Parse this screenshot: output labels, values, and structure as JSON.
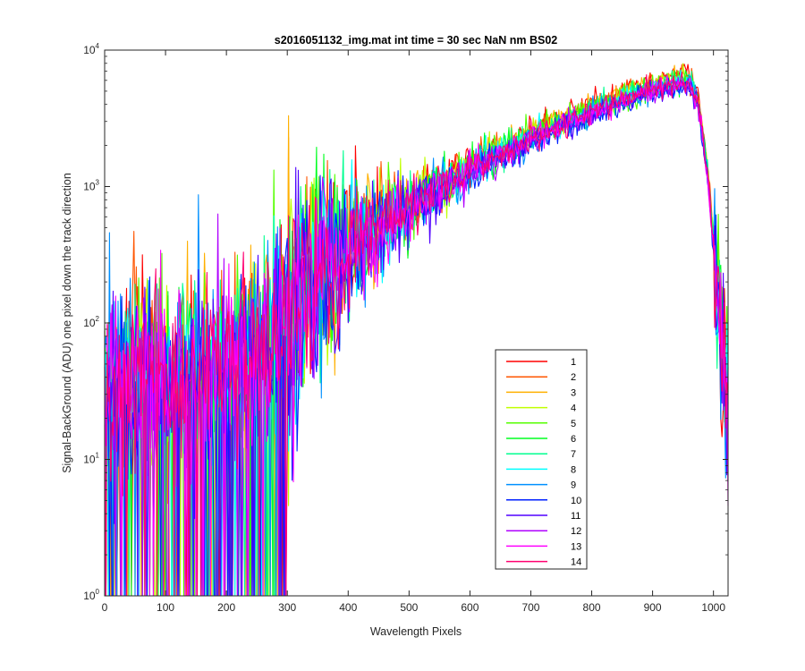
{
  "chart_data": {
    "type": "line",
    "title": "s2016051132_img.mat int time = 30 sec  NaN nm BS02",
    "xlabel": "Wavelength Pixels",
    "ylabel": "Signal-BackGround (ADU) one pixel down the track direction",
    "xlim": [
      0,
      1024
    ],
    "ylim": [
      1,
      10000
    ],
    "yscale": "log",
    "grid": false,
    "legend_position": "lower-right",
    "x_ticks": [
      "0",
      "100",
      "200",
      "300",
      "400",
      "500",
      "600",
      "700",
      "800",
      "900",
      "1000"
    ],
    "y_ticks": [
      {
        "base": "10",
        "exp": "0"
      },
      {
        "base": "10",
        "exp": "1"
      },
      {
        "base": "10",
        "exp": "2"
      },
      {
        "base": "10",
        "exp": "3"
      },
      {
        "base": "10",
        "exp": "4"
      }
    ],
    "envelope": {
      "x": [
        0,
        50,
        100,
        150,
        200,
        250,
        280,
        300,
        350,
        400,
        450,
        500,
        550,
        600,
        650,
        700,
        750,
        800,
        850,
        900,
        930,
        955,
        965,
        975,
        990,
        1005,
        1015,
        1024
      ],
      "y": [
        40,
        40,
        40,
        40,
        45,
        60,
        80,
        110,
        200,
        330,
        480,
        700,
        960,
        1320,
        1750,
        2250,
        2800,
        3500,
        4300,
        5100,
        5600,
        5900,
        5500,
        4000,
        1300,
        200,
        70,
        20
      ]
    },
    "series": [
      {
        "name": "1",
        "color": "#ff0000",
        "scale": 1.14
      },
      {
        "name": "2",
        "color": "#ff5500",
        "scale": 1.12
      },
      {
        "name": "3",
        "color": "#ffb000",
        "scale": 1.1
      },
      {
        "name": "4",
        "color": "#c0ff00",
        "scale": 1.08
      },
      {
        "name": "5",
        "color": "#55ff00",
        "scale": 1.06
      },
      {
        "name": "6",
        "color": "#00ff20",
        "scale": 1.04
      },
      {
        "name": "7",
        "color": "#00ff90",
        "scale": 1.02
      },
      {
        "name": "8",
        "color": "#00ffff",
        "scale": 1.0
      },
      {
        "name": "9",
        "color": "#0090ff",
        "scale": 0.98
      },
      {
        "name": "10",
        "color": "#0020ff",
        "scale": 0.95
      },
      {
        "name": "11",
        "color": "#5000ff",
        "scale": 0.96
      },
      {
        "name": "12",
        "color": "#b000ff",
        "scale": 0.97
      },
      {
        "name": "13",
        "color": "#ff00ff",
        "scale": 0.99
      },
      {
        "name": "14",
        "color": "#ff0070",
        "scale": 1.0
      }
    ]
  }
}
